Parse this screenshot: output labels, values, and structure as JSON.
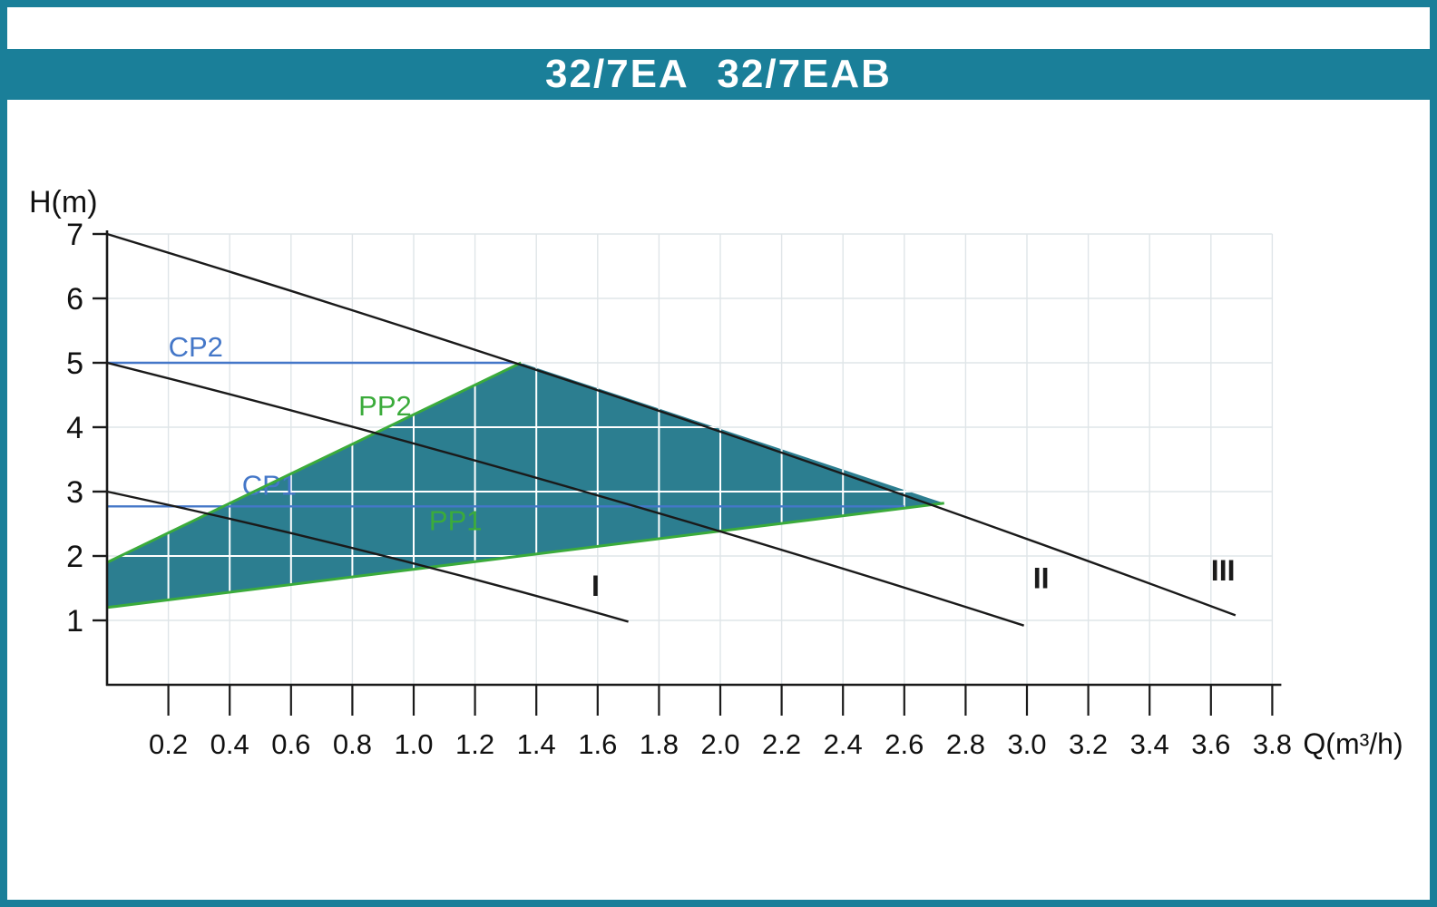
{
  "chart_data": {
    "type": "line",
    "title": "32/7EA 32/7EAB",
    "xlabel": "Q(m³/h)",
    "ylabel": "H(m)",
    "xlim": [
      0,
      3.8
    ],
    "ylim": [
      0,
      7
    ],
    "grid": true,
    "x_ticks": [
      "0.2",
      "0.4",
      "0.6",
      "0.8",
      "1.0",
      "1.2",
      "1.4",
      "1.6",
      "1.8",
      "2.0",
      "2.2",
      "2.4",
      "2.6",
      "2.8",
      "3.0",
      "3.2",
      "3.4",
      "3.6",
      "3.8"
    ],
    "y_ticks": [
      "1",
      "2",
      "3",
      "4",
      "5",
      "6",
      "7"
    ],
    "colors": {
      "frame": "#1a7f99",
      "region": "#2c7e90",
      "green": "#3bab3b",
      "blue": "#4477c8",
      "curve": "#1a1a1a",
      "grid_light": "#dfe5e8",
      "grid_white": "#ffffff"
    },
    "speed_curves": [
      {
        "name": "I",
        "points": [
          [
            0,
            3.0
          ],
          [
            1.7,
            0.98
          ]
        ],
        "bow": 0.15,
        "label_pos": [
          1.58,
          1.38
        ]
      },
      {
        "name": "II",
        "points": [
          [
            0,
            5.0
          ],
          [
            2.99,
            0.92
          ]
        ],
        "bow": 0.25,
        "label_pos": [
          3.02,
          1.5
        ]
      },
      {
        "name": "III",
        "points": [
          [
            0,
            7.0
          ],
          [
            3.68,
            1.08
          ]
        ],
        "bow": 0.3,
        "label_pos": [
          3.6,
          1.62
        ]
      }
    ],
    "control_lines": [
      {
        "name": "CP2",
        "h": 5.0,
        "q_start": 0,
        "q_end": 1.33,
        "label_pos": [
          0.2,
          5.1
        ]
      },
      {
        "name": "CP1",
        "h": 2.77,
        "q_start": 0,
        "q_end": 2.6,
        "label_pos": [
          0.44,
          2.95
        ]
      }
    ],
    "proportional_lines": [
      {
        "name": "PP2",
        "points": [
          [
            0,
            1.9
          ],
          [
            1.35,
            5.0
          ]
        ],
        "label_pos": [
          0.82,
          4.18
        ]
      },
      {
        "name": "PP1",
        "points": [
          [
            0,
            1.2
          ],
          [
            2.73,
            2.82
          ]
        ],
        "label_pos": [
          1.05,
          2.4
        ]
      }
    ],
    "operating_region": {
      "polygon": [
        [
          0,
          1.2
        ],
        [
          0,
          1.9
        ],
        [
          1.35,
          5.0
        ],
        [
          2.73,
          2.82
        ]
      ]
    }
  }
}
